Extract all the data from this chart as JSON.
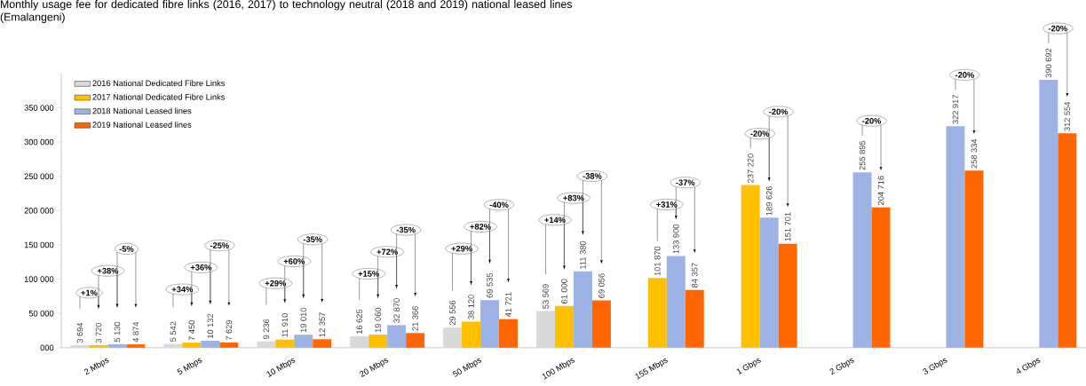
{
  "chart_data": {
    "type": "bar",
    "title": "Monthly usage fee for dedicated fibre links (2016, 2017) to technology neutral (2018 and 2019) national leased lines (Emalangeni)",
    "categories": [
      "2 Mbps",
      "5 Mbps",
      "10 Mbps",
      "20 Mbps",
      "50 Mbps",
      "100 Mbps",
      "155 Mbps",
      "1 Gbps",
      "2 Gbps",
      "3 Gbps",
      "4 Gbps"
    ],
    "series": [
      {
        "name": "2016 National Dedicated Fibre Links",
        "color": "#d9d9d9",
        "values": [
          3694,
          5542,
          9236,
          16625,
          29556,
          53569,
          null,
          null,
          null,
          null,
          null
        ],
        "value_labels": [
          "3 694",
          "5 542",
          "9 236",
          "16 625",
          "29 556",
          "53 569",
          null,
          null,
          null,
          null,
          null
        ]
      },
      {
        "name": "2017 National Dedicated Fibre Links",
        "color": "#ffc000",
        "values": [
          3720,
          7450,
          11910,
          19060,
          38120,
          61000,
          101870,
          237220,
          null,
          null,
          null
        ],
        "value_labels": [
          "3 720",
          "7 450",
          "11 910",
          "19 060",
          "38 120",
          "61 000",
          "101 870",
          "237 220",
          null,
          null,
          null
        ]
      },
      {
        "name": "2018 National Leased lines",
        "color": "#9db3e6",
        "values": [
          5130,
          10132,
          19010,
          32870,
          69535,
          111380,
          133900,
          189626,
          255895,
          322917,
          390692
        ],
        "value_labels": [
          "5 130",
          "10 132",
          "19 010",
          "32 870",
          "69 535",
          "111 380",
          "133 900",
          "189 626",
          "255 895",
          "322 917",
          "390 692"
        ]
      },
      {
        "name": "2019 National Leased lines",
        "color": "#ff6600",
        "values": [
          4874,
          7629,
          12357,
          21366,
          41721,
          69056,
          84357,
          151701,
          204716,
          258334,
          312554
        ],
        "value_labels": [
          "4 874",
          "7 629",
          "12 357",
          "21 366",
          "41 721",
          "69 056",
          "84 357",
          "151 701",
          "204 716",
          "258 334",
          "312 554"
        ]
      }
    ],
    "ylim": [
      0,
      400000
    ],
    "yticks": [
      {
        "value": 0,
        "label": "000"
      },
      {
        "value": 50000,
        "label": "50 000"
      },
      {
        "value": 100000,
        "label": "100 000"
      },
      {
        "value": 150000,
        "label": "150 000"
      },
      {
        "value": 200000,
        "label": "200 000"
      },
      {
        "value": 250000,
        "label": "250 000"
      },
      {
        "value": 300000,
        "label": "300 000"
      },
      {
        "value": 350000,
        "label": "350 000"
      }
    ],
    "legend": "top left",
    "annotations": [
      "+1%",
      "+38%",
      "-5%",
      "+34%",
      "+36%",
      "-25%",
      "+29%",
      "+60%",
      "-35%",
      "+15%",
      "+72%",
      "-35%",
      "+29%",
      "+82%",
      "-40%",
      "+14%",
      "+83%",
      "-38%",
      "+31%",
      "-37%",
      "-20%",
      "-20%",
      "-20%",
      "-20%",
      "-20%"
    ]
  }
}
